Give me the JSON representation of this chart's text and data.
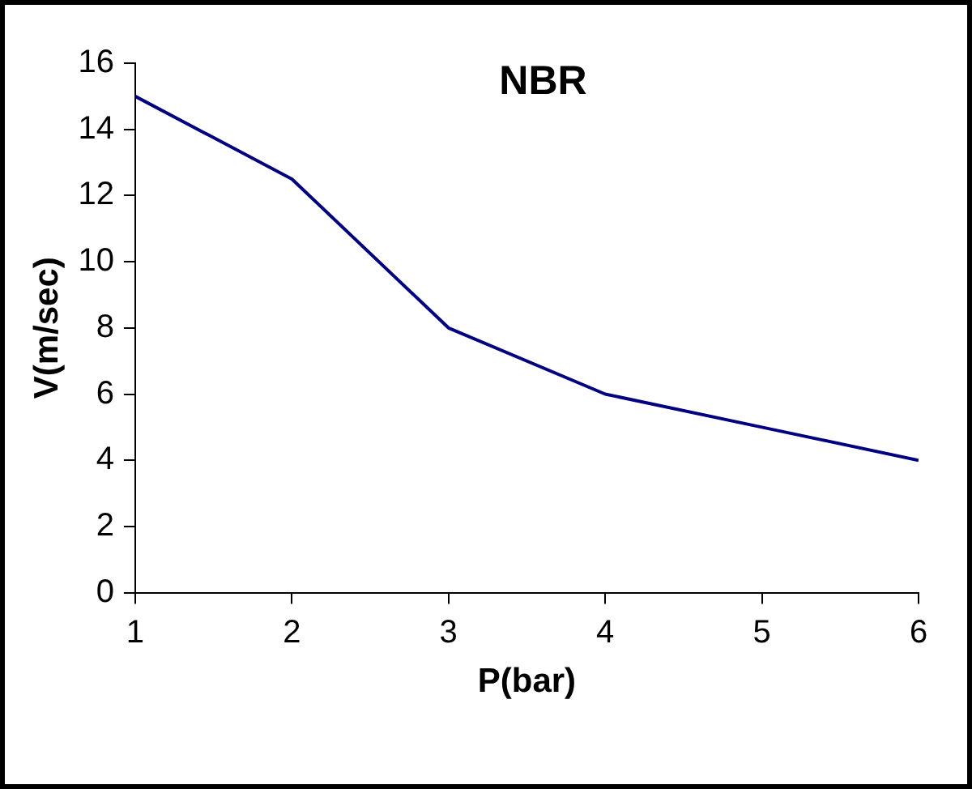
{
  "chart_data": {
    "type": "line",
    "title": "NBR",
    "xlabel": "P(bar)",
    "ylabel": "V(m/sec)",
    "x": [
      1,
      2,
      3,
      4,
      5,
      6
    ],
    "series": [
      {
        "color": "#000080",
        "values": [
          15,
          12.5,
          8,
          6,
          5,
          4
        ]
      }
    ],
    "xlim": [
      1,
      6
    ],
    "xticks": [
      1,
      2,
      3,
      4,
      5,
      6
    ],
    "ylim": [
      0,
      16
    ],
    "yticks": [
      0,
      2,
      4,
      6,
      8,
      10,
      12,
      14,
      16
    ],
    "grid": false,
    "legend": false,
    "marker": "none",
    "line_style": "solid"
  }
}
